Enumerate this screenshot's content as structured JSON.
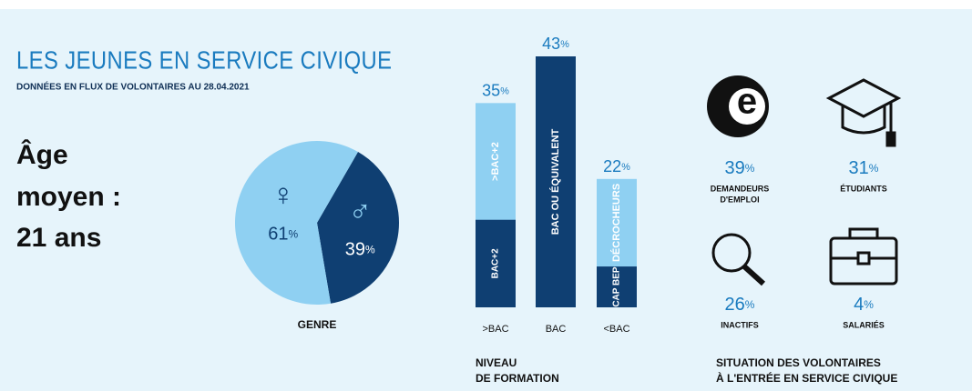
{
  "header": {
    "title": "LES JEUNES EN SERVICE CIVIQUE",
    "subtitle": "DONNÉES EN FLUX DE VOLONTAIRES AU 28.04.2021"
  },
  "age": [
    "Âge",
    "moyen :",
    "21 ans"
  ],
  "unit": "%",
  "chart_data": [
    {
      "type": "pie",
      "title": "GENRE",
      "categories": [
        "♀",
        "♂"
      ],
      "values": [
        61,
        39
      ],
      "colors": [
        "#8fd0f2",
        "#0f3f72"
      ]
    },
    {
      "type": "bar",
      "title": [
        "NIVEAU",
        "DE FORMATION"
      ],
      "categories": [
        ">BAC",
        "BAC",
        "<BAC"
      ],
      "values": [
        35,
        43,
        22
      ],
      "lower_values": [
        15,
        43,
        7
      ],
      "upper_labels": [
        ">BAC+2",
        null,
        "DÉCROCHEURS"
      ],
      "lower_labels": [
        "BAC+2",
        "BAC OU ÉQUIVALENT",
        "CAP BEP"
      ],
      "colors": [
        "#8fd0f2",
        "#0f3f72"
      ],
      "ylim": [
        0,
        43
      ]
    }
  ],
  "situation": {
    "title": [
      "SITUATION DES VOLONTAIRES",
      "À L'ENTRÉE EN SERVICE CIVIQUE"
    ],
    "items": [
      {
        "value": 39,
        "label": [
          "DEMANDEURS",
          "D'EMPLOI"
        ]
      },
      {
        "value": 31,
        "label": [
          "ÉTUDIANTS"
        ]
      },
      {
        "value": 26,
        "label": [
          "INACTIFS"
        ]
      },
      {
        "value": 4,
        "label": [
          "SALARIÉS"
        ]
      }
    ]
  }
}
